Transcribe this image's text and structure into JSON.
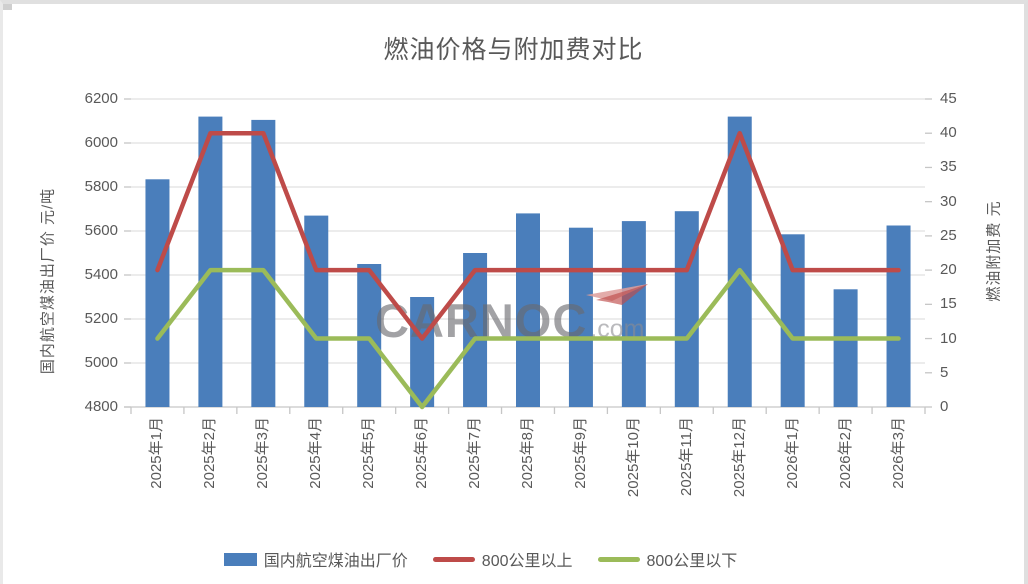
{
  "watermark": {
    "brand": "CARNOC",
    "suffix": ".com"
  },
  "chart_data": {
    "type": "combo",
    "title": "燃油价格与附加费对比",
    "categories": [
      "2025年1月",
      "2025年2月",
      "2025年3月",
      "2025年4月",
      "2025年5月",
      "2025年6月",
      "2025年7月",
      "2025年8月",
      "2025年9月",
      "2025年10月",
      "2025年11月",
      "2025年12月",
      "2026年1月",
      "2026年2月",
      "2026年3月"
    ],
    "series": [
      {
        "name": "国内航空煤油出厂价",
        "kind": "bar",
        "axis": "left",
        "color": "#4A7EBB",
        "values": [
          5835,
          6120,
          6105,
          5670,
          5450,
          5300,
          5500,
          5680,
          5615,
          5645,
          5690,
          6120,
          5585,
          5335,
          5625
        ]
      },
      {
        "name": "800公里以上",
        "kind": "line",
        "axis": "right",
        "color": "#BE4B49",
        "values": [
          20,
          40,
          40,
          20,
          20,
          10,
          20,
          20,
          20,
          20,
          20,
          40,
          20,
          20,
          20
        ]
      },
      {
        "name": "800公里以下",
        "kind": "line",
        "axis": "right",
        "color": "#9BBB59",
        "values": [
          10,
          20,
          20,
          10,
          10,
          0,
          10,
          10,
          10,
          10,
          10,
          20,
          10,
          10,
          10
        ]
      }
    ],
    "left_axis": {
      "label": "国内航空煤油出厂价  元/吨",
      "min": 4800,
      "max": 6200,
      "step": 200,
      "ticks": [
        "4800",
        "5000",
        "5200",
        "5400",
        "5600",
        "5800",
        "6000",
        "6200"
      ]
    },
    "right_axis": {
      "label": "燃油附加费  元",
      "min": 0,
      "max": 45,
      "step": 5,
      "ticks": [
        "0",
        "5",
        "10",
        "15",
        "20",
        "25",
        "30",
        "35",
        "40",
        "45"
      ]
    },
    "grid": true,
    "legend_position": "bottom",
    "colors": {
      "gridline": "#D9D9D9",
      "axis": "#C6C6C6",
      "text": "#595959"
    }
  }
}
